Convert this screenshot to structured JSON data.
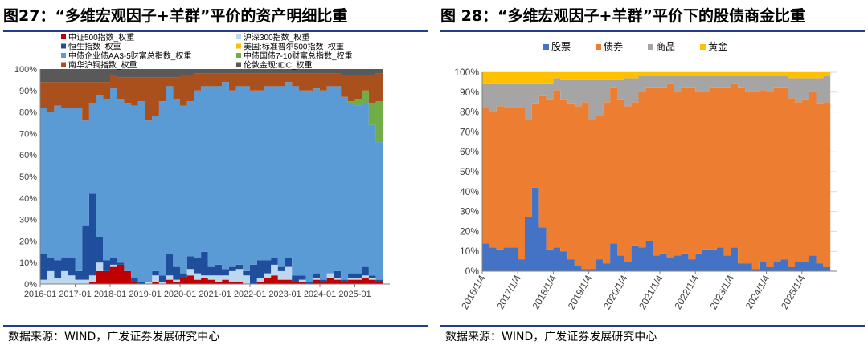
{
  "left": {
    "title": "图27：“多维宏观因子+羊群”平价的资产明细比重",
    "source": "数据来源：WIND，广发证券发展研究中心",
    "chart_data": {
      "type": "area",
      "stacked": true,
      "x_ticks": [
        "2016-01",
        "2017-01",
        "2018-01",
        "2019-01",
        "2020-01",
        "2021-01",
        "2022-01",
        "2023-01",
        "2024-01",
        "2025-01"
      ],
      "y_ticks": [
        "0%",
        "10%",
        "20%",
        "30%",
        "40%",
        "50%",
        "60%",
        "70%",
        "80%",
        "90%",
        "100%"
      ],
      "ylim": [
        0,
        100
      ],
      "legend": [
        {
          "label": "中证500指数_权重",
          "color": "#c00000"
        },
        {
          "label": "沪深300指数_权重",
          "color": "#bdd7ee"
        },
        {
          "label": "恒生指数_权重",
          "color": "#1f4e9c"
        },
        {
          "label": "美国:标准普尔500指数_权重",
          "color": "#ffc000"
        },
        {
          "label": "中债企业债AA3-5财富总指数_权重",
          "color": "#5b9bd5"
        },
        {
          "label": "中债国债7-10财富总指数_权重",
          "color": "#70ad47"
        },
        {
          "label": "南华沪铜指数_权重",
          "color": "#a9501c"
        },
        {
          "label": "伦敦金现:IDC_权重",
          "color": "#595959"
        }
      ],
      "x": [
        2016.0,
        2016.2,
        2016.4,
        2016.6,
        2016.8,
        2017.0,
        2017.2,
        2017.4,
        2017.6,
        2017.8,
        2018.0,
        2018.2,
        2018.4,
        2018.6,
        2018.8,
        2019.0,
        2019.2,
        2019.4,
        2019.6,
        2019.8,
        2020.0,
        2020.2,
        2020.4,
        2020.6,
        2020.8,
        2021.0,
        2021.2,
        2021.4,
        2021.6,
        2021.8,
        2022.0,
        2022.2,
        2022.4,
        2022.6,
        2022.8,
        2023.0,
        2023.2,
        2023.4,
        2023.6,
        2023.8,
        2024.0,
        2024.2,
        2024.4,
        2024.6,
        2024.8,
        2025.0,
        2025.2,
        2025.4,
        2025.6
      ],
      "series": [
        {
          "name": "中证500指数_权重",
          "values": [
            0,
            0,
            0,
            0,
            0,
            0,
            0,
            1,
            6,
            6,
            8,
            9,
            6,
            1,
            0,
            0,
            1,
            0,
            2,
            1,
            3,
            4,
            2,
            3,
            2,
            1,
            2,
            1,
            1,
            0,
            0,
            1,
            3,
            4,
            2,
            2,
            1,
            1,
            0,
            2,
            1,
            3,
            2,
            1,
            2,
            2,
            3,
            2,
            1
          ]
        },
        {
          "name": "沪深300指数_权重",
          "values": [
            2,
            6,
            3,
            6,
            4,
            2,
            2,
            3,
            4,
            0,
            1,
            0,
            0,
            0,
            0,
            1,
            3,
            1,
            2,
            1,
            0,
            3,
            3,
            1,
            2,
            3,
            2,
            5,
            6,
            4,
            0,
            2,
            2,
            5,
            4,
            6,
            0,
            1,
            0,
            1,
            0,
            2,
            1,
            0,
            1,
            1,
            1,
            1,
            0
          ]
        },
        {
          "name": "恒生指数_权重",
          "values": [
            12,
            6,
            8,
            6,
            8,
            4,
            25,
            38,
            12,
            5,
            3,
            1,
            0,
            2,
            1,
            0,
            2,
            3,
            10,
            6,
            2,
            6,
            7,
            11,
            4,
            5,
            3,
            2,
            2,
            2,
            9,
            8,
            6,
            3,
            2,
            4,
            3,
            2,
            1,
            2,
            1,
            0,
            3,
            1,
            2,
            2,
            4,
            1,
            1
          ]
        },
        {
          "name": "美国:标准普尔500指数_权重",
          "values": [
            0,
            0,
            0,
            0,
            0,
            0,
            0,
            0,
            0,
            0,
            0,
            0,
            0,
            0,
            0,
            0,
            0,
            0,
            0,
            0,
            0,
            0,
            0,
            0,
            0,
            0,
            0,
            0,
            0,
            0,
            0,
            0,
            0,
            0,
            0,
            0,
            0,
            0,
            0,
            0,
            0,
            0,
            0,
            0,
            0,
            0,
            0,
            0,
            0
          ]
        },
        {
          "name": "中债企业债AA3-5财富总指数_权重",
          "values": [
            68,
            68,
            72,
            70,
            70,
            76,
            49,
            42,
            66,
            75,
            79,
            76,
            78,
            80,
            84,
            75,
            72,
            81,
            78,
            78,
            78,
            72,
            78,
            77,
            84,
            83,
            87,
            82,
            83,
            86,
            81,
            79,
            81,
            80,
            84,
            82,
            88,
            86,
            89,
            86,
            88,
            87,
            86,
            85,
            79,
            78,
            76,
            70,
            64
          ]
        },
        {
          "name": "中债国债7-10财富总指数_权重",
          "values": [
            0,
            0,
            0,
            0,
            0,
            0,
            0,
            0,
            0,
            0,
            0,
            0,
            0,
            0,
            0,
            0,
            0,
            0,
            0,
            0,
            0,
            0,
            0,
            0,
            0,
            0,
            0,
            0,
            0,
            0,
            0,
            0,
            0,
            0,
            0,
            0,
            0,
            0,
            0,
            0,
            0,
            0,
            0,
            0,
            1,
            3,
            6,
            10,
            19
          ]
        },
        {
          "name": "南华沪铜指数_权重",
          "values": [
            12,
            14,
            11,
            12,
            12,
            12,
            18,
            10,
            6,
            8,
            6,
            10,
            12,
            13,
            11,
            20,
            18,
            11,
            4,
            10,
            14,
            12,
            8,
            6,
            6,
            6,
            4,
            8,
            6,
            6,
            8,
            8,
            6,
            6,
            6,
            4,
            6,
            8,
            8,
            7,
            8,
            6,
            6,
            10,
            12,
            11,
            7,
            13,
            13
          ]
        },
        {
          "name": "伦敦金现:IDC_权重",
          "values": [
            6,
            6,
            6,
            6,
            6,
            6,
            6,
            6,
            6,
            6,
            3,
            4,
            4,
            4,
            4,
            4,
            4,
            4,
            4,
            4,
            3,
            3,
            2,
            2,
            2,
            2,
            2,
            2,
            2,
            2,
            2,
            2,
            2,
            2,
            2,
            2,
            2,
            2,
            2,
            2,
            2,
            2,
            2,
            3,
            3,
            3,
            3,
            3,
            2
          ]
        }
      ]
    }
  },
  "right": {
    "title": "图 28：“多维宏观因子+羊群”平价下的股债商金比重",
    "source": "数据来源：WIND，广发证券发展研究中心",
    "chart_data": {
      "type": "area",
      "stacked": true,
      "x_ticks": [
        "2016/1/4",
        "2017/1/4",
        "2018/1/4",
        "2019/1/4",
        "2020/1/4",
        "2021/1/4",
        "2022/1/4",
        "2023/1/4",
        "2024/1/4",
        "2025/1/4"
      ],
      "y_ticks": [
        "0%",
        "10%",
        "20%",
        "30%",
        "40%",
        "50%",
        "60%",
        "70%",
        "80%",
        "90%",
        "100%"
      ],
      "ylim": [
        0,
        100
      ],
      "legend": [
        {
          "label": "股票",
          "color": "#4472c4"
        },
        {
          "label": "债券",
          "color": "#ed7d31"
        },
        {
          "label": "商品",
          "color": "#a5a5a5"
        },
        {
          "label": "黄金",
          "color": "#ffc000"
        }
      ],
      "x": [
        2016.0,
        2016.2,
        2016.4,
        2016.6,
        2016.8,
        2017.0,
        2017.2,
        2017.4,
        2017.6,
        2017.8,
        2018.0,
        2018.2,
        2018.4,
        2018.6,
        2018.8,
        2019.0,
        2019.2,
        2019.4,
        2019.6,
        2019.8,
        2020.0,
        2020.2,
        2020.4,
        2020.6,
        2020.8,
        2021.0,
        2021.2,
        2021.4,
        2021.6,
        2021.8,
        2022.0,
        2022.2,
        2022.4,
        2022.6,
        2022.8,
        2023.0,
        2023.2,
        2023.4,
        2023.6,
        2023.8,
        2024.0,
        2024.2,
        2024.4,
        2024.6,
        2024.8,
        2025.0,
        2025.2,
        2025.4,
        2025.6
      ],
      "series": [
        {
          "name": "股票",
          "values": [
            14,
            12,
            11,
            12,
            12,
            6,
            27,
            42,
            22,
            11,
            12,
            10,
            6,
            3,
            1,
            1,
            6,
            4,
            14,
            8,
            5,
            13,
            12,
            15,
            8,
            9,
            7,
            8,
            9,
            6,
            9,
            11,
            11,
            12,
            8,
            12,
            4,
            4,
            1,
            5,
            2,
            5,
            6,
            2,
            5,
            5,
            8,
            4,
            2
          ]
        },
        {
          "name": "债券",
          "values": [
            68,
            68,
            72,
            70,
            70,
            76,
            49,
            42,
            66,
            75,
            79,
            76,
            78,
            80,
            84,
            75,
            72,
            81,
            78,
            78,
            78,
            72,
            78,
            77,
            84,
            83,
            87,
            82,
            83,
            86,
            81,
            79,
            81,
            80,
            84,
            82,
            88,
            86,
            89,
            86,
            88,
            87,
            86,
            85,
            80,
            81,
            82,
            80,
            83
          ]
        },
        {
          "name": "商品",
          "values": [
            12,
            14,
            11,
            12,
            12,
            12,
            18,
            10,
            6,
            8,
            6,
            10,
            12,
            13,
            11,
            20,
            18,
            11,
            4,
            10,
            14,
            12,
            8,
            6,
            6,
            6,
            4,
            8,
            6,
            6,
            8,
            8,
            6,
            6,
            6,
            4,
            6,
            8,
            8,
            7,
            8,
            6,
            6,
            10,
            12,
            11,
            7,
            13,
            13
          ]
        },
        {
          "name": "黄金",
          "values": [
            6,
            6,
            6,
            6,
            6,
            6,
            6,
            6,
            6,
            6,
            3,
            4,
            4,
            4,
            4,
            4,
            4,
            4,
            4,
            4,
            3,
            3,
            2,
            2,
            2,
            2,
            2,
            2,
            2,
            2,
            2,
            2,
            2,
            2,
            2,
            2,
            2,
            2,
            2,
            2,
            2,
            2,
            2,
            3,
            3,
            3,
            3,
            3,
            2
          ]
        }
      ]
    }
  }
}
